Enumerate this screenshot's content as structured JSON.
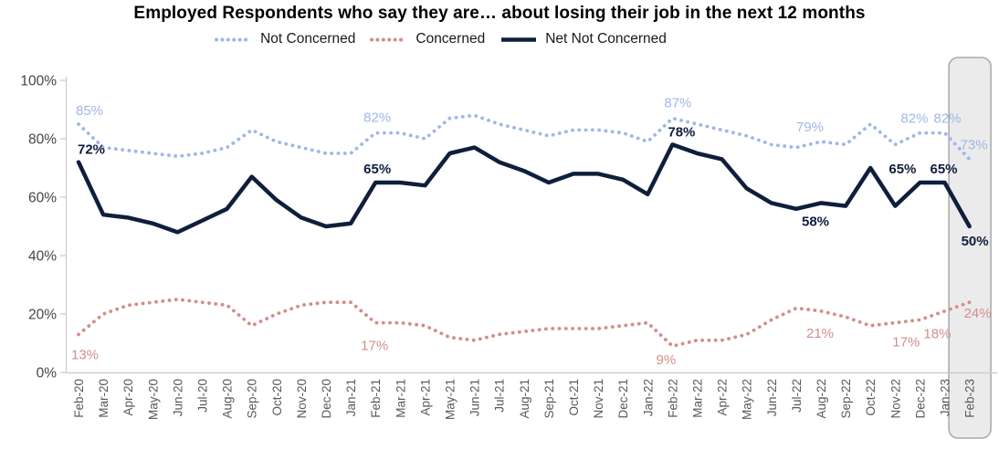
{
  "title": "Employed Respondents who say they are… about losing their job in the next 12 months",
  "legend": {
    "items": [
      {
        "label": "Not Concerned",
        "style": "dotted",
        "color": "#9FB7E5"
      },
      {
        "label": "Concerned",
        "style": "dotted",
        "color": "#D28E89"
      },
      {
        "label": "Net Not Concerned",
        "style": "solid",
        "color": "#0F1E3C"
      }
    ]
  },
  "chart_data": {
    "type": "line",
    "title": "Employed Respondents who say they are… about losing their job in the next 12 months",
    "categories": [
      "Feb-20",
      "Mar-20",
      "Apr-20",
      "May-20",
      "Jun-20",
      "Jul-20",
      "Aug-20",
      "Sep-20",
      "Oct-20",
      "Nov-20",
      "Dec-20",
      "Jan-21",
      "Feb-21",
      "Mar-21",
      "Apr-21",
      "May-21",
      "Jun-21",
      "Jul-21",
      "Aug-21",
      "Sep-21",
      "Oct-21",
      "Nov-21",
      "Dec-21",
      "Jan-22",
      "Feb-22",
      "Mar-22",
      "Apr-22",
      "May-22",
      "Jun-22",
      "Jul-22",
      "Aug-22",
      "Sep-22",
      "Oct-22",
      "Nov-22",
      "Dec-22",
      "Jan-23",
      "Feb-23"
    ],
    "y_axis": {
      "min": 0,
      "max": 100,
      "step": 20,
      "tick_labels": [
        "0%",
        "20%",
        "40%",
        "60%",
        "80%",
        "100%"
      ]
    },
    "grid": false,
    "legend_position": "top",
    "highlight_band": {
      "category": "Feb-23",
      "fill": "#EBEBEB",
      "border": "#A9A9A9"
    },
    "series": [
      {
        "name": "Not Concerned",
        "style": "dotted",
        "color": "#9FB7E5",
        "label_font_weight": "normal",
        "values": [
          85,
          77,
          76,
          75,
          74,
          75,
          77,
          83,
          79,
          77,
          75,
          75,
          82,
          82,
          80,
          87,
          88,
          85,
          83,
          81,
          83,
          83,
          82,
          79,
          87,
          85,
          83,
          81,
          78,
          77,
          79,
          78,
          85,
          78,
          82,
          82,
          73
        ],
        "point_labels": [
          {
            "index": 0,
            "text": "85%",
            "dx": 12,
            "dy": -10
          },
          {
            "index": 12,
            "text": "82%",
            "dx": 2,
            "dy": -12
          },
          {
            "index": 24,
            "text": "87%",
            "dx": 6,
            "dy": -12
          },
          {
            "index": 30,
            "text": "79%",
            "dx": -12,
            "dy": -11
          },
          {
            "index": 34,
            "text": "82%",
            "dx": -6,
            "dy": -11
          },
          {
            "index": 35,
            "text": "82%",
            "dx": 3,
            "dy": -11
          },
          {
            "index": 36,
            "text": "73%",
            "dx": 5,
            "dy": -11
          }
        ]
      },
      {
        "name": "Concerned",
        "style": "dotted",
        "color": "#D28E89",
        "label_font_weight": "normal",
        "values": [
          13,
          20,
          23,
          24,
          25,
          24,
          23,
          16,
          20,
          23,
          24,
          24,
          17,
          17,
          16,
          12,
          11,
          13,
          14,
          15,
          15,
          15,
          16,
          17,
          9,
          11,
          11,
          13,
          18,
          22,
          21,
          19,
          16,
          17,
          18,
          21,
          24
        ],
        "point_labels": [
          {
            "index": 0,
            "text": "13%",
            "dx": 7,
            "dy": 27
          },
          {
            "index": 12,
            "text": "17%",
            "dx": -1,
            "dy": 30
          },
          {
            "index": 24,
            "text": "9%",
            "dx": -7,
            "dy": 20
          },
          {
            "index": 30,
            "text": "21%",
            "dx": -1,
            "dy": 29
          },
          {
            "index": 33,
            "text": "17%",
            "dx": 12,
            "dy": 26
          },
          {
            "index": 34,
            "text": "18%",
            "dx": 19,
            "dy": 20
          },
          {
            "index": 36,
            "text": "24%",
            "dx": 9,
            "dy": 17
          }
        ]
      },
      {
        "name": "Net Not Concerned",
        "style": "solid",
        "color": "#0F1E3C",
        "label_font_weight": "bold",
        "values": [
          72,
          54,
          53,
          51,
          48,
          52,
          56,
          67,
          59,
          53,
          50,
          51,
          65,
          65,
          64,
          75,
          77,
          72,
          69,
          65,
          68,
          68,
          66,
          61,
          78,
          75,
          73,
          63,
          58,
          56,
          58,
          57,
          70,
          57,
          65,
          65,
          50
        ],
        "point_labels": [
          {
            "index": 0,
            "text": "72%",
            "dx": 14,
            "dy": -9
          },
          {
            "index": 12,
            "text": "65%",
            "dx": 2,
            "dy": -10
          },
          {
            "index": 24,
            "text": "78%",
            "dx": 10,
            "dy": -9
          },
          {
            "index": 30,
            "text": "58%",
            "dx": -6,
            "dy": 25
          },
          {
            "index": 34,
            "text": "65%",
            "dx": -19,
            "dy": -10
          },
          {
            "index": 35,
            "text": "65%",
            "dx": -1,
            "dy": -10
          },
          {
            "index": 36,
            "text": "50%",
            "dx": 6,
            "dy": 21
          }
        ]
      }
    ],
    "style_hints": {
      "axis_color": "#C9C9C9",
      "y_tick_label_color": "#454545",
      "x_tick_label_color": "#595959",
      "data_label_font_size": 15,
      "x_labels_rotated_degrees": -90
    }
  }
}
